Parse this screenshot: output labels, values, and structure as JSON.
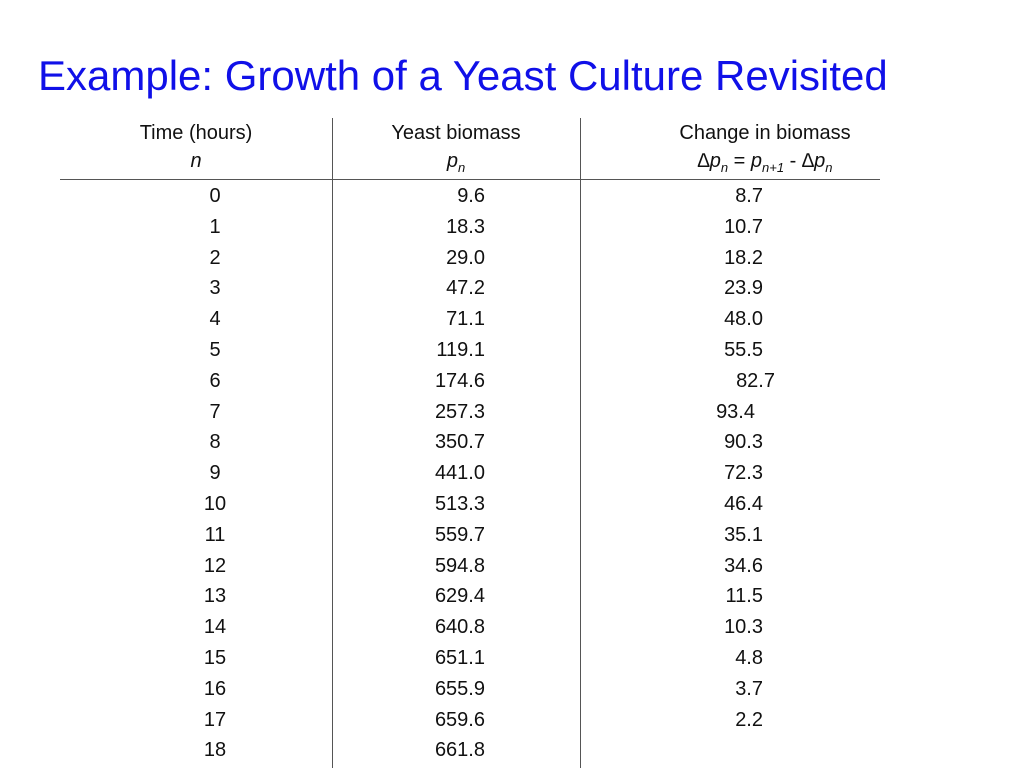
{
  "slide": {
    "title": "Example: Growth of a Yeast Culture Revisited"
  },
  "table": {
    "headers": {
      "time_label": "Time (hours)",
      "time_symbol": "n",
      "biomass_label": "Yeast biomass",
      "biomass_symbol": "p",
      "biomass_symbol_sub": "n",
      "change_label": "Change in biomass",
      "change_formula": {
        "delta1": "∆",
        "p1": "p",
        "sub1": "n",
        "eq": " = ",
        "p2": "p",
        "sub2": "n+1",
        "minus": " - ",
        "delta2": "∆",
        "p3": "p",
        "sub3": "n"
      }
    },
    "rows": [
      {
        "n": "0",
        "p": "9.6",
        "d": "8.7"
      },
      {
        "n": "1",
        "p": "18.3",
        "d": "10.7"
      },
      {
        "n": "2",
        "p": "29.0",
        "d": "18.2"
      },
      {
        "n": "3",
        "p": "47.2",
        "d": "23.9"
      },
      {
        "n": "4",
        "p": "71.1",
        "d": "48.0"
      },
      {
        "n": "5",
        "p": "119.1",
        "d": "55.5"
      },
      {
        "n": "6",
        "p": "174.6",
        "d": "82.7"
      },
      {
        "n": "7",
        "p": "257.3",
        "d": "93.4"
      },
      {
        "n": "8",
        "p": "350.7",
        "d": "90.3"
      },
      {
        "n": "9",
        "p": "441.0",
        "d": "72.3"
      },
      {
        "n": "10",
        "p": "513.3",
        "d": "46.4"
      },
      {
        "n": "11",
        "p": "559.7",
        "d": "35.1"
      },
      {
        "n": "12",
        "p": "594.8",
        "d": "34.6"
      },
      {
        "n": "13",
        "p": "629.4",
        "d": "11.5"
      },
      {
        "n": "14",
        "p": "640.8",
        "d": "10.3"
      },
      {
        "n": "15",
        "p": "651.1",
        "d": "4.8"
      },
      {
        "n": "16",
        "p": "655.9",
        "d": "3.7"
      },
      {
        "n": "17",
        "p": "659.6",
        "d": "2.2"
      },
      {
        "n": "18",
        "p": "661.8",
        "d": ""
      }
    ]
  }
}
